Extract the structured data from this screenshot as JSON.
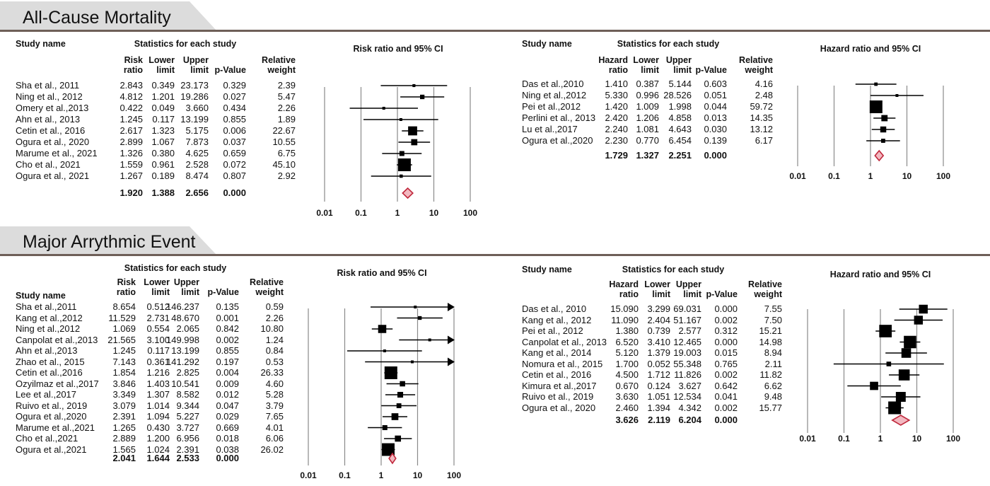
{
  "sections": [
    {
      "title": "All-Cause Mortality"
    },
    {
      "title": "Major Arrythmic Event"
    }
  ],
  "chart_data": [
    {
      "type": "forest",
      "section": "All-Cause Mortality",
      "headers": {
        "study": "Study name",
        "group": "Statistics for each study",
        "ratio": [
          "Risk",
          "ratio"
        ],
        "lower": [
          "Lower",
          "limit"
        ],
        "upper": [
          "Upper",
          "limit"
        ],
        "p": "p-Value",
        "weight": [
          "Relative",
          "weight"
        ],
        "plot": "Risk ratio and 95% CI"
      },
      "ticks": [
        "0.01",
        "0.1",
        "1",
        "10",
        "100"
      ],
      "studies": [
        {
          "name": "Sha et al., 2011",
          "ratio": "2.843",
          "lower": "0.349",
          "upper": "23.173",
          "p": "0.329",
          "weight": "2.39"
        },
        {
          "name": "Ning et al., 2012",
          "ratio": "4.812",
          "lower": "1.201",
          "upper": "19.286",
          "p": "0.027",
          "weight": "5.47"
        },
        {
          "name": "Omery et al.,2013",
          "ratio": "0.422",
          "lower": "0.049",
          "upper": "3.660",
          "p": "0.434",
          "weight": "2.26"
        },
        {
          "name": "Ahn et al., 2013",
          "ratio": "1.245",
          "lower": "0.117",
          "upper": "13.199",
          "p": "0.855",
          "weight": "1.89"
        },
        {
          "name": "Cetin et al., 2016",
          "ratio": "2.617",
          "lower": "1.323",
          "upper": "5.175",
          "p": "0.006",
          "weight": "22.67"
        },
        {
          "name": "Ogura et al., 2020",
          "ratio": "2.899",
          "lower": "1.067",
          "upper": "7.873",
          "p": "0.037",
          "weight": "10.55"
        },
        {
          "name": "Marume et al., 2021",
          "ratio": "1.326",
          "lower": "0.380",
          "upper": "4.625",
          "p": "0.659",
          "weight": "6.75"
        },
        {
          "name": "Cho et al., 2021",
          "ratio": "1.559",
          "lower": "0.961",
          "upper": "2.528",
          "p": "0.072",
          "weight": "45.10"
        },
        {
          "name": "Ogura et al., 2021",
          "ratio": "1.267",
          "lower": "0.189",
          "upper": "8.474",
          "p": "0.807",
          "weight": "2.92"
        }
      ],
      "pooled": {
        "ratio": "1.920",
        "lower": "1.388",
        "upper": "2.656",
        "p": "0.000"
      }
    },
    {
      "type": "forest",
      "section": "All-Cause Mortality",
      "headers": {
        "study": "Study name",
        "group": "Statistics for each study",
        "ratio": [
          "Hazard",
          "ratio"
        ],
        "lower": [
          "Lower",
          "limit"
        ],
        "upper": [
          "Upper",
          "limit"
        ],
        "p": "p-Value",
        "weight": [
          "Relative",
          "weight"
        ],
        "plot": "Hazard ratio and 95% CI"
      },
      "ticks": [
        "0.01",
        "0.1",
        "1",
        "10",
        "100"
      ],
      "studies": [
        {
          "name": "Das et al.,2010",
          "ratio": "1.410",
          "lower": "0.387",
          "upper": "5.144",
          "p": "0.603",
          "weight": "4.16"
        },
        {
          "name": "Ning et al.,2012",
          "ratio": "5.330",
          "lower": "0.996",
          "upper": "28.526",
          "p": "0.051",
          "weight": "2.48"
        },
        {
          "name": "Pei et al.,2012",
          "ratio": "1.420",
          "lower": "1.009",
          "upper": "1.998",
          "p": "0.044",
          "weight": "59.72"
        },
        {
          "name": "Perlini et al., 2013",
          "ratio": "2.420",
          "lower": "1.206",
          "upper": "4.858",
          "p": "0.013",
          "weight": "14.35"
        },
        {
          "name": "Lu et al.,2017",
          "ratio": "2.240",
          "lower": "1.081",
          "upper": "4.643",
          "p": "0.030",
          "weight": "13.12"
        },
        {
          "name": "Ogura et al.,2020",
          "ratio": "2.230",
          "lower": "0.770",
          "upper": "6.454",
          "p": "0.139",
          "weight": "6.17"
        }
      ],
      "pooled": {
        "ratio": "1.729",
        "lower": "1.327",
        "upper": "2.251",
        "p": "0.000"
      }
    },
    {
      "type": "forest",
      "section": "Major Arrythmic Event",
      "headers": {
        "study": "Study name",
        "group": "Statistics for each study",
        "ratio": [
          "Risk",
          "ratio"
        ],
        "lower": [
          "Lower",
          "limit"
        ],
        "upper": [
          "Upper",
          "limit"
        ],
        "p": "p-Value",
        "weight": [
          "Relative",
          "weight"
        ],
        "plot": "Risk ratio and 95% CI"
      },
      "ticks": [
        "0.01",
        "0.1",
        "1",
        "10",
        "100"
      ],
      "studies": [
        {
          "name": "Sha et al.,2011",
          "ratio": "8.654",
          "lower": "0.512",
          "upper": "146.237",
          "p": "0.135",
          "weight": "0.59"
        },
        {
          "name": "Kang et al.,2012",
          "ratio": "11.529",
          "lower": "2.731",
          "upper": "48.670",
          "p": "0.001",
          "weight": "2.26"
        },
        {
          "name": "Ning et al.,2012",
          "ratio": "1.069",
          "lower": "0.554",
          "upper": "2.065",
          "p": "0.842",
          "weight": "10.80"
        },
        {
          "name": "Canpolat et al.,2013",
          "ratio": "21.565",
          "lower": "3.100",
          "upper": "149.998",
          "p": "0.002",
          "weight": "1.24"
        },
        {
          "name": "Ahn et al.,2013",
          "ratio": "1.245",
          "lower": "0.117",
          "upper": "13.199",
          "p": "0.855",
          "weight": "0.84"
        },
        {
          "name": "Zhao et al., 2015",
          "ratio": "7.143",
          "lower": "0.361",
          "upper": "141.292",
          "p": "0.197",
          "weight": "0.53"
        },
        {
          "name": "Cetin et al.,2016",
          "ratio": "1.854",
          "lower": "1.216",
          "upper": "2.825",
          "p": "0.004",
          "weight": "26.33"
        },
        {
          "name": "Ozyilmaz et al.,2017",
          "ratio": "3.846",
          "lower": "1.403",
          "upper": "10.541",
          "p": "0.009",
          "weight": "4.60"
        },
        {
          "name": "Lee et al.,2017",
          "ratio": "3.349",
          "lower": "1.307",
          "upper": "8.582",
          "p": "0.012",
          "weight": "5.28"
        },
        {
          "name": "Ruivo et al., 2019",
          "ratio": "3.079",
          "lower": "1.014",
          "upper": "9.344",
          "p": "0.047",
          "weight": "3.79"
        },
        {
          "name": "Ogura et al.,2020",
          "ratio": "2.391",
          "lower": "1.094",
          "upper": "5.227",
          "p": "0.029",
          "weight": "7.65"
        },
        {
          "name": "Marume et al.,2021",
          "ratio": "1.265",
          "lower": "0.430",
          "upper": "3.727",
          "p": "0.669",
          "weight": "4.01"
        },
        {
          "name": "Cho et al.,2021",
          "ratio": "2.889",
          "lower": "1.200",
          "upper": "6.956",
          "p": "0.018",
          "weight": "6.06"
        },
        {
          "name": "Ogura et al.,2021",
          "ratio": "1.565",
          "lower": "1.024",
          "upper": "2.391",
          "p": "0.038",
          "weight": "26.02"
        }
      ],
      "pooled": {
        "ratio": "2.041",
        "lower": "1.644",
        "upper": "2.533",
        "p": "0.000"
      }
    },
    {
      "type": "forest",
      "section": "Major Arrythmic Event",
      "headers": {
        "study": "Study name",
        "group": "Statistics for each study",
        "ratio": [
          "Hazard",
          "ratio"
        ],
        "lower": [
          "Lower",
          "limit"
        ],
        "upper": [
          "Upper",
          "limit"
        ],
        "p": "p-Value",
        "weight": [
          "Relative",
          "weight"
        ],
        "plot": "Hazard ratio and 95% CI"
      },
      "ticks": [
        "0.01",
        "0.1",
        "1",
        "10",
        "100"
      ],
      "studies": [
        {
          "name": "Das et al., 2010",
          "ratio": "15.090",
          "lower": "3.299",
          "upper": "69.031",
          "p": "0.000",
          "weight": "7.55"
        },
        {
          "name": "Kang et al., 2012",
          "ratio": "11.090",
          "lower": "2.404",
          "upper": "51.167",
          "p": "0.002",
          "weight": "7.50"
        },
        {
          "name": "Pei et al., 2012",
          "ratio": "1.380",
          "lower": "0.739",
          "upper": "2.577",
          "p": "0.312",
          "weight": "15.21"
        },
        {
          "name": "Canpolat et al., 2013",
          "ratio": "6.520",
          "lower": "3.410",
          "upper": "12.465",
          "p": "0.000",
          "weight": "14.98"
        },
        {
          "name": "Kang et al., 2014",
          "ratio": "5.120",
          "lower": "1.379",
          "upper": "19.003",
          "p": "0.015",
          "weight": "8.94"
        },
        {
          "name": "Nomura et al., 2015",
          "ratio": "1.700",
          "lower": "0.052",
          "upper": "55.348",
          "p": "0.765",
          "weight": "2.11"
        },
        {
          "name": "Cetin et al., 2016",
          "ratio": "4.500",
          "lower": "1.712",
          "upper": "11.826",
          "p": "0.002",
          "weight": "11.82"
        },
        {
          "name": "Kimura et al.,2017",
          "ratio": "0.670",
          "lower": "0.124",
          "upper": "3.627",
          "p": "0.642",
          "weight": "6.62"
        },
        {
          "name": "Ruivo et al., 2019",
          "ratio": "3.630",
          "lower": "1.051",
          "upper": "12.534",
          "p": "0.041",
          "weight": "9.48"
        },
        {
          "name": "Ogura et al., 2020",
          "ratio": "2.460",
          "lower": "1.394",
          "upper": "4.342",
          "p": "0.002",
          "weight": "15.77"
        }
      ],
      "pooled": {
        "ratio": "3.626",
        "lower": "2.119",
        "upper": "6.204",
        "p": "0.000"
      }
    }
  ]
}
